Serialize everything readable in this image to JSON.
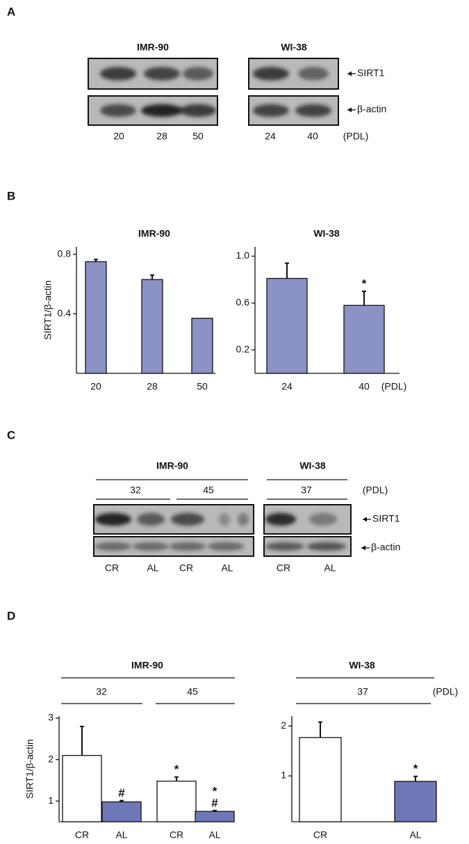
{
  "panel_labels": [
    "A",
    "B",
    "C",
    "D"
  ],
  "blot_a": {
    "groups": [
      {
        "name": "IMR-90",
        "lanes": [
          "20",
          "28",
          "50"
        ]
      },
      {
        "name": "WI-38",
        "lanes": [
          "24",
          "40"
        ]
      }
    ],
    "unit": "(PDL)",
    "rows": [
      "SIRT1",
      "β-actin"
    ]
  },
  "blot_c": {
    "groups": [
      {
        "name": "IMR-90",
        "pdl": [
          "32",
          "45"
        ],
        "lanes": [
          "CR",
          "AL",
          "CR",
          "AL"
        ]
      },
      {
        "name": "WI-38",
        "pdl": [
          "37"
        ],
        "lanes": [
          "CR",
          "AL"
        ]
      }
    ],
    "unit": "(PDL)",
    "rows": [
      "SIRT1",
      "β-actin"
    ]
  },
  "chart_data": [
    {
      "type": "bar",
      "title": "IMR-90",
      "y_label": "SIRT1/β-actin",
      "categories": [
        "20",
        "28",
        "50"
      ],
      "values": [
        0.75,
        0.63,
        0.37
      ],
      "errors": [
        0.015,
        0.03,
        null
      ],
      "colors": [
        "#8a92c6",
        "#8a92c6",
        "#8a92c6"
      ],
      "annotations": [
        null,
        null,
        null
      ],
      "ylim": [
        0,
        0.85
      ],
      "yticks": [
        0.4,
        0.8
      ]
    },
    {
      "type": "bar",
      "title": "WI-38",
      "x_unit": "(PDL)",
      "categories": [
        "24",
        "40"
      ],
      "values": [
        0.81,
        0.58
      ],
      "errors": [
        0.13,
        0.12
      ],
      "colors": [
        "#8a92c6",
        "#8a92c6"
      ],
      "annotations": [
        null,
        [
          "*"
        ]
      ],
      "ylim": [
        0,
        1.08
      ],
      "yticks": [
        0.2,
        0.6,
        {
          "value": 1,
          "label": "1.0"
        }
      ]
    },
    {
      "type": "bar",
      "title": "IMR-90",
      "y_label": "SIRT1/β-actin",
      "groups": [
        "32",
        "45"
      ],
      "categories": [
        "CR",
        "AL",
        "CR",
        "AL"
      ],
      "values": [
        2.1,
        0.98,
        1.48,
        0.75
      ],
      "errors": [
        0.7,
        0.03,
        0.1,
        0.02
      ],
      "colors": [
        "#ffffff",
        "#6e78b8",
        "#ffffff",
        "#6e78b8"
      ],
      "annotations": [
        null,
        [
          "#"
        ],
        [
          "*"
        ],
        [
          "*",
          "#"
        ]
      ],
      "ylim": [
        0.5,
        3.05
      ],
      "yticks": [
        1,
        2,
        3
      ]
    },
    {
      "type": "bar",
      "title": "WI-38",
      "groups": [
        "37"
      ],
      "x_unit": "(PDL)",
      "categories": [
        "CR",
        "AL"
      ],
      "values": [
        1.77,
        0.89
      ],
      "errors": [
        0.31,
        0.1
      ],
      "colors": [
        "#ffffff",
        "#6e78b8"
      ],
      "annotations": [
        null,
        [
          "*"
        ]
      ],
      "ylim": [
        0.08,
        2.2
      ],
      "yticks": [
        1,
        2
      ]
    }
  ]
}
